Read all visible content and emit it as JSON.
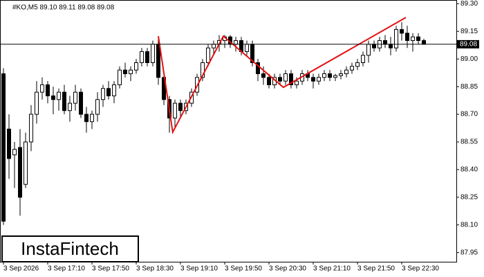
{
  "chart_data": {
    "type": "candlestick",
    "header": "#KO,M5 89.10 89.11 89.08 89.08",
    "logo": "InstaFintech",
    "categories": [
      "3 Sep 2026",
      null,
      null,
      null,
      null,
      null,
      null,
      null,
      "3 Sep 17:10",
      null,
      null,
      null,
      null,
      null,
      null,
      null,
      "3 Sep 17:50",
      null,
      null,
      null,
      null,
      null,
      null,
      null,
      "3 Sep 18:30",
      null,
      null,
      null,
      null,
      null,
      null,
      null,
      "3 Sep 19:10",
      null,
      null,
      null,
      null,
      null,
      null,
      null,
      "3 Sep 19:50",
      null,
      null,
      null,
      null,
      null,
      null,
      null,
      "3 Sep 20:30",
      null,
      null,
      null,
      null,
      null,
      null,
      null,
      "3 Sep 21:10",
      null,
      null,
      null,
      null,
      null,
      null,
      null,
      "3 Sep 21:50",
      null,
      null,
      null,
      null,
      null,
      null,
      null,
      "3 Sep 22:30",
      null,
      null,
      null,
      null
    ],
    "open": [
      88.92,
      88.62,
      88.48,
      88.52,
      88.32,
      88.55,
      88.7,
      88.82,
      88.86,
      88.8,
      88.78,
      88.82,
      88.72,
      88.76,
      88.82,
      88.7,
      88.66,
      88.7,
      88.78,
      88.84,
      88.8,
      88.86,
      88.94,
      88.92,
      88.94,
      88.98,
      89.04,
      88.98,
      89.08,
      88.9,
      88.78,
      88.68,
      88.76,
      88.72,
      88.76,
      88.82,
      88.9,
      88.98,
      89.06,
      89.08,
      89.1,
      89.12,
      89.08,
      89.1,
      89.04,
      89.08,
      88.98,
      88.92,
      88.9,
      88.86,
      88.9,
      88.88,
      88.92,
      88.86,
      88.88,
      88.92,
      88.9,
      88.88,
      88.9,
      88.92,
      88.9,
      88.91,
      88.92,
      88.94,
      88.96,
      88.98,
      89.02,
      89.08,
      89.06,
      89.1,
      89.08,
      89.06,
      89.16,
      89.14,
      89.1,
      89.12,
      89.1
    ],
    "high": [
      88.95,
      88.7,
      88.55,
      88.62,
      88.6,
      88.75,
      88.88,
      88.9,
      88.88,
      88.85,
      88.84,
      88.86,
      88.8,
      88.86,
      88.84,
      88.74,
      88.72,
      88.82,
      88.86,
      88.88,
      88.88,
      88.96,
      88.98,
      88.96,
      89.0,
      89.06,
      89.06,
      89.1,
      89.12,
      88.92,
      88.8,
      88.78,
      88.78,
      88.78,
      88.84,
      88.92,
      89.0,
      89.08,
      89.1,
      89.13,
      89.13,
      89.13,
      89.12,
      89.12,
      89.1,
      89.1,
      89.0,
      88.96,
      88.92,
      88.92,
      88.92,
      88.94,
      88.94,
      88.9,
      88.94,
      88.94,
      88.92,
      88.92,
      88.94,
      88.94,
      88.92,
      88.94,
      88.96,
      88.98,
      89.0,
      89.04,
      89.1,
      89.1,
      89.12,
      89.13,
      89.12,
      89.18,
      89.2,
      89.18,
      89.14,
      89.14,
      89.11
    ],
    "low": [
      88.1,
      88.35,
      88.3,
      88.15,
      88.3,
      88.5,
      88.65,
      88.78,
      88.76,
      88.7,
      88.72,
      88.7,
      88.66,
      88.72,
      88.68,
      88.6,
      88.62,
      88.66,
      88.74,
      88.78,
      88.76,
      88.84,
      88.9,
      88.88,
      88.92,
      88.96,
      88.96,
      88.96,
      88.86,
      88.75,
      88.6,
      88.62,
      88.68,
      88.7,
      88.74,
      88.8,
      88.88,
      88.96,
      89.02,
      89.04,
      89.06,
      89.06,
      89.04,
      89.02,
      89.02,
      88.96,
      88.88,
      88.86,
      88.84,
      88.84,
      88.86,
      88.86,
      88.84,
      88.84,
      88.86,
      88.88,
      88.84,
      88.86,
      88.88,
      88.88,
      88.88,
      88.89,
      88.9,
      88.92,
      88.94,
      88.96,
      88.98,
      89.04,
      89.04,
      89.06,
      89.02,
      89.04,
      89.1,
      89.06,
      89.04,
      89.08,
      89.08
    ],
    "close": [
      88.12,
      88.46,
      88.51,
      88.25,
      88.55,
      88.7,
      88.82,
      88.86,
      88.8,
      88.78,
      88.82,
      88.72,
      88.76,
      88.82,
      88.7,
      88.66,
      88.7,
      88.78,
      88.84,
      88.8,
      88.86,
      88.94,
      88.92,
      88.94,
      88.98,
      89.04,
      88.98,
      89.08,
      88.9,
      88.78,
      88.68,
      88.76,
      88.72,
      88.76,
      88.82,
      88.9,
      88.98,
      89.06,
      89.08,
      89.1,
      89.12,
      89.08,
      89.1,
      89.04,
      89.08,
      88.98,
      88.92,
      88.9,
      88.86,
      88.9,
      88.88,
      88.92,
      88.86,
      88.88,
      88.92,
      88.9,
      88.88,
      88.9,
      88.92,
      88.9,
      88.91,
      88.92,
      88.94,
      88.96,
      88.98,
      89.02,
      89.08,
      89.06,
      89.1,
      89.08,
      89.06,
      89.16,
      89.14,
      89.1,
      89.12,
      89.1,
      89.08
    ],
    "pattern": {
      "color": "#e31010",
      "x": [
        28,
        30.6,
        39.75,
        50.6,
        72.75
      ],
      "values": [
        89.124,
        88.603,
        89.124,
        88.846,
        89.225
      ]
    },
    "price_line": 89.08,
    "ylim": [
      87.9,
      89.32
    ],
    "yticks": [
      {
        "value": 89.3,
        "label": "89.30"
      },
      89.15,
      {
        "value": 89,
        "label": "89.00"
      },
      88.85,
      {
        "value": 88.7,
        "label": "88.70"
      },
      88.55,
      {
        "value": 88.4,
        "label": "88.40"
      },
      88.25,
      {
        "value": 88.1,
        "label": "88.10"
      },
      87.95
    ]
  }
}
